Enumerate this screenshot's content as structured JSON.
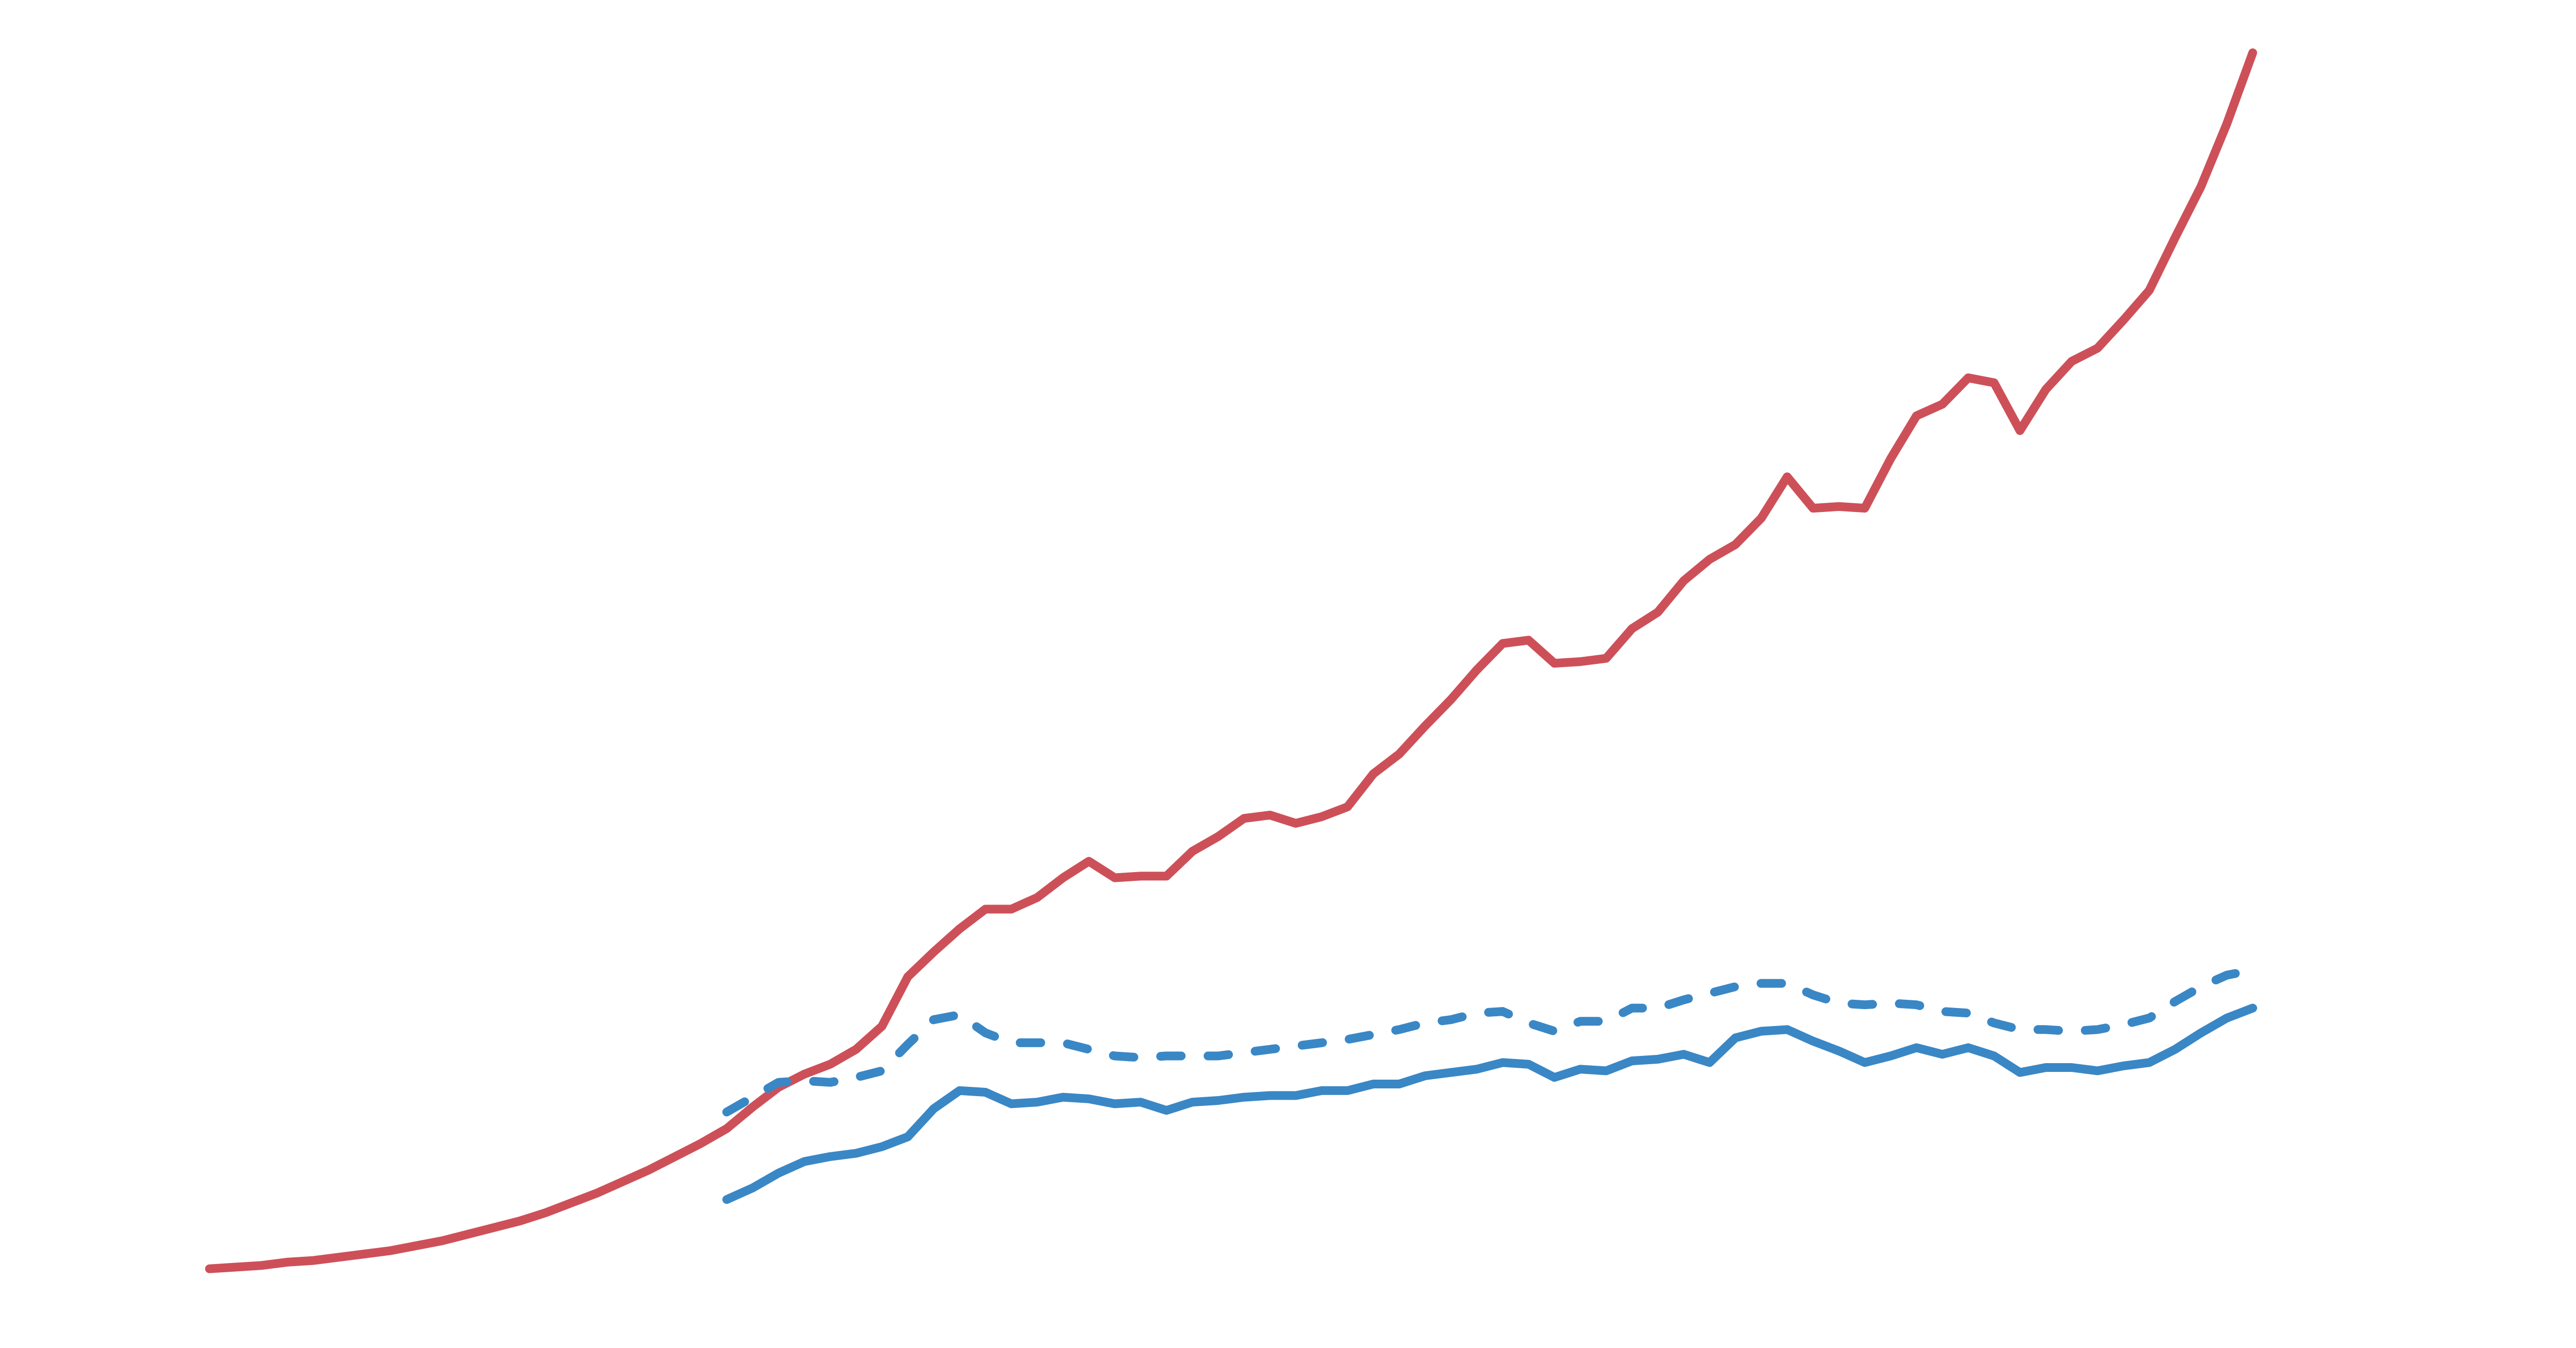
{
  "chart_data": {
    "type": "line",
    "x": [
      0,
      1,
      2,
      3,
      4,
      5,
      6,
      7,
      8,
      9,
      10,
      11,
      12,
      13,
      14,
      15,
      16,
      17,
      18,
      19,
      20,
      21,
      22,
      23,
      24,
      25,
      26,
      27,
      28,
      29,
      30,
      31,
      32,
      33,
      34,
      35,
      36,
      37,
      38,
      39,
      40,
      41,
      42,
      43,
      44,
      45,
      46,
      47,
      48,
      49,
      50,
      51,
      52,
      53,
      54,
      55,
      56,
      57,
      58,
      59,
      60,
      61,
      62,
      63,
      64,
      65,
      66,
      67,
      68,
      69,
      70,
      71,
      72,
      73,
      74,
      75,
      76,
      77,
      78,
      79
    ],
    "xlim": [
      -8.1,
      91.5
    ],
    "ylim": [
      0,
      817
    ],
    "series": [
      {
        "color": "#cd5059",
        "dashed": false,
        "values": [
          48,
          49,
          50,
          52,
          53,
          55,
          57,
          59,
          62,
          65,
          69,
          73,
          77,
          82,
          88,
          94,
          101,
          108,
          116,
          124,
          133,
          146,
          158,
          166,
          172,
          181,
          195,
          225,
          240,
          254,
          266,
          266,
          273,
          285,
          295,
          285,
          286,
          286,
          301,
          310,
          321,
          323,
          318,
          322,
          328,
          348,
          360,
          377,
          393,
          411,
          427,
          429,
          415,
          416,
          418,
          436,
          446,
          465,
          478,
          487,
          503,
          528,
          509,
          510,
          509,
          539,
          565,
          572,
          588,
          585,
          556,
          581,
          598,
          606,
          623,
          641,
          673,
          704,
          742,
          785
        ]
      },
      {
        "color": "#3a87c6",
        "dashed": false,
        "values": [
          null,
          null,
          null,
          null,
          null,
          null,
          null,
          null,
          null,
          null,
          null,
          null,
          null,
          null,
          null,
          null,
          null,
          null,
          null,
          null,
          90,
          97,
          106,
          113,
          116,
          118,
          122,
          128,
          145,
          156,
          155,
          148,
          149,
          152,
          151,
          148,
          149,
          144,
          149,
          150,
          152,
          153,
          153,
          156,
          156,
          160,
          160,
          165,
          167,
          169,
          173,
          172,
          164,
          169,
          168,
          174,
          175,
          178,
          173,
          188,
          192,
          193,
          186,
          180,
          173,
          177,
          182,
          178,
          182,
          177,
          167,
          170,
          170,
          168,
          171,
          173,
          181,
          191,
          200,
          206
        ]
      },
      {
        "color": "#3a87c6",
        "dashed": true,
        "values": [
          null,
          null,
          null,
          null,
          null,
          null,
          null,
          null,
          null,
          null,
          null,
          null,
          null,
          null,
          null,
          null,
          null,
          null,
          null,
          null,
          143,
          152,
          161,
          162,
          161,
          164,
          168,
          184,
          199,
          202,
          191,
          185,
          185,
          185,
          181,
          177,
          176,
          177,
          177,
          177,
          179,
          181,
          183,
          185,
          187,
          190,
          193,
          197,
          199,
          203,
          204,
          197,
          192,
          198,
          198,
          206,
          206,
          211,
          215,
          219,
          221,
          221,
          214,
          209,
          208,
          209,
          208,
          204,
          203,
          197,
          193,
          193,
          192,
          193,
          196,
          200,
          210,
          219,
          226,
          229
        ]
      }
    ]
  }
}
